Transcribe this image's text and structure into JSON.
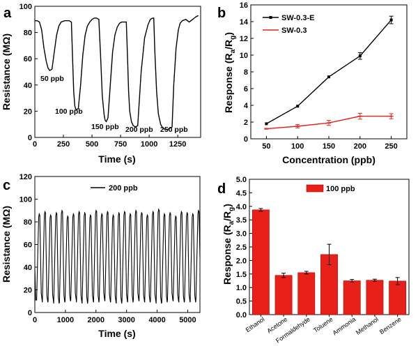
{
  "figure": {
    "panels": [
      {
        "letter": "a"
      },
      {
        "letter": "b"
      },
      {
        "letter": "c"
      },
      {
        "letter": "d"
      }
    ]
  },
  "chart_data": [
    {
      "panel": "a",
      "type": "line",
      "xlabel": "Time (s)",
      "ylabel": "Resistance (MΩ)",
      "xlim": [
        0,
        1450
      ],
      "ylim": [
        0,
        100
      ],
      "xticks": [
        "0",
        "250",
        "500",
        "750",
        "1000",
        "1250"
      ],
      "yticks": [
        "0",
        "20",
        "40",
        "60",
        "80",
        "100"
      ],
      "series": [
        {
          "color": "#000000",
          "x": [
            0,
            20,
            40,
            60,
            80,
            100,
            115,
            130,
            150,
            170,
            190,
            210,
            230,
            260,
            300,
            320,
            330,
            340,
            350,
            360,
            380,
            400,
            420,
            440,
            460,
            480,
            500,
            520,
            540,
            560,
            575,
            590,
            605,
            615,
            625,
            640,
            660,
            680,
            700,
            720,
            740,
            760,
            780,
            800,
            810,
            820,
            830,
            845,
            860,
            880,
            900,
            930,
            960,
            990,
            1010,
            1030,
            1040,
            1050,
            1065,
            1080,
            1100,
            1120,
            1140,
            1160,
            1180,
            1200,
            1215,
            1235,
            1255,
            1270,
            1290,
            1320,
            1350,
            1380,
            1410,
            1430
          ],
          "y": [
            89,
            89,
            88,
            82,
            68,
            58,
            53,
            51,
            52,
            65,
            78,
            85,
            88,
            89,
            89,
            88,
            60,
            35,
            24,
            21,
            22,
            40,
            63,
            78,
            85,
            88,
            90,
            91,
            91,
            90,
            62,
            32,
            18,
            13,
            12,
            15,
            40,
            65,
            78,
            84,
            87,
            88,
            88,
            88,
            62,
            35,
            20,
            12,
            9,
            8,
            9,
            50,
            76,
            86,
            90,
            91,
            91,
            65,
            35,
            18,
            10,
            7,
            6,
            6,
            7,
            8,
            40,
            68,
            82,
            87,
            89,
            90,
            88,
            90,
            92,
            93
          ]
        }
      ],
      "annotations": [
        "50 ppb",
        "100 ppb",
        "150 ppb",
        "200 ppb",
        "250 ppb"
      ]
    },
    {
      "panel": "b",
      "type": "line",
      "xlabel": "Concentration (ppb)",
      "ylabel": "Response (Ra/Rg)",
      "ylabel_main": "Response (R",
      "ylabel_sub1": "a",
      "ylabel_mid": "/R",
      "ylabel_sub2": "g",
      "ylabel_end": ")",
      "xlim": [
        25,
        275
      ],
      "ylim": [
        0,
        16
      ],
      "xticks": [
        "50",
        "100",
        "150",
        "200",
        "250"
      ],
      "yticks": [
        "0",
        "2",
        "4",
        "6",
        "8",
        "10",
        "12",
        "14",
        "16"
      ],
      "series": [
        {
          "name": "SW-0.3-E",
          "color": "#000000",
          "x": [
            50,
            100,
            150,
            200,
            250
          ],
          "y": [
            1.8,
            3.9,
            7.4,
            9.9,
            14.2
          ],
          "err": [
            0,
            0,
            0,
            0.4,
            0.45
          ]
        },
        {
          "name": "SW-0.3",
          "color": "#e8201a",
          "x": [
            50,
            100,
            150,
            200,
            250
          ],
          "y": [
            1.2,
            1.5,
            1.9,
            2.7,
            2.7
          ],
          "err": [
            0.05,
            0.2,
            0.3,
            0.35,
            0.3
          ]
        }
      ],
      "legend": "top-left"
    },
    {
      "panel": "c",
      "type": "line",
      "xlabel": "Time (s)",
      "ylabel": "Resistance (MΩ)",
      "xlim": [
        0,
        5400
      ],
      "ylim": [
        0,
        120
      ],
      "xticks": [
        "0",
        "1000",
        "2000",
        "3000",
        "4000",
        "5000"
      ],
      "yticks": [
        "0",
        "20",
        "40",
        "60",
        "80",
        "100",
        "120"
      ],
      "series": [
        {
          "name": "200 ppb",
          "color": "#000000",
          "cycles": 29,
          "period_s": 186,
          "max": 87,
          "min": 9
        }
      ],
      "legend": "top-center"
    },
    {
      "panel": "d",
      "type": "bar",
      "xlabel": "",
      "ylabel": "Response (Ra/Rg)",
      "ylim": [
        0,
        5
      ],
      "yticks": [
        "0.0",
        "0.5",
        "1.0",
        "1.5",
        "2.0",
        "2.5",
        "3.0",
        "3.5",
        "4.0",
        "4.5",
        "5.0"
      ],
      "categories": [
        "Ethanol",
        "Acetone",
        "Formaldehyde",
        "Toluene",
        "Ammonia",
        "Methanol",
        "Benzene"
      ],
      "series": [
        {
          "name": "100 ppb",
          "color": "#e8201a",
          "values": [
            3.87,
            1.45,
            1.55,
            2.22,
            1.25,
            1.27,
            1.24
          ],
          "err": [
            0.05,
            0.08,
            0.05,
            0.38,
            0.05,
            0.04,
            0.13
          ]
        }
      ],
      "legend": "top-center"
    }
  ]
}
